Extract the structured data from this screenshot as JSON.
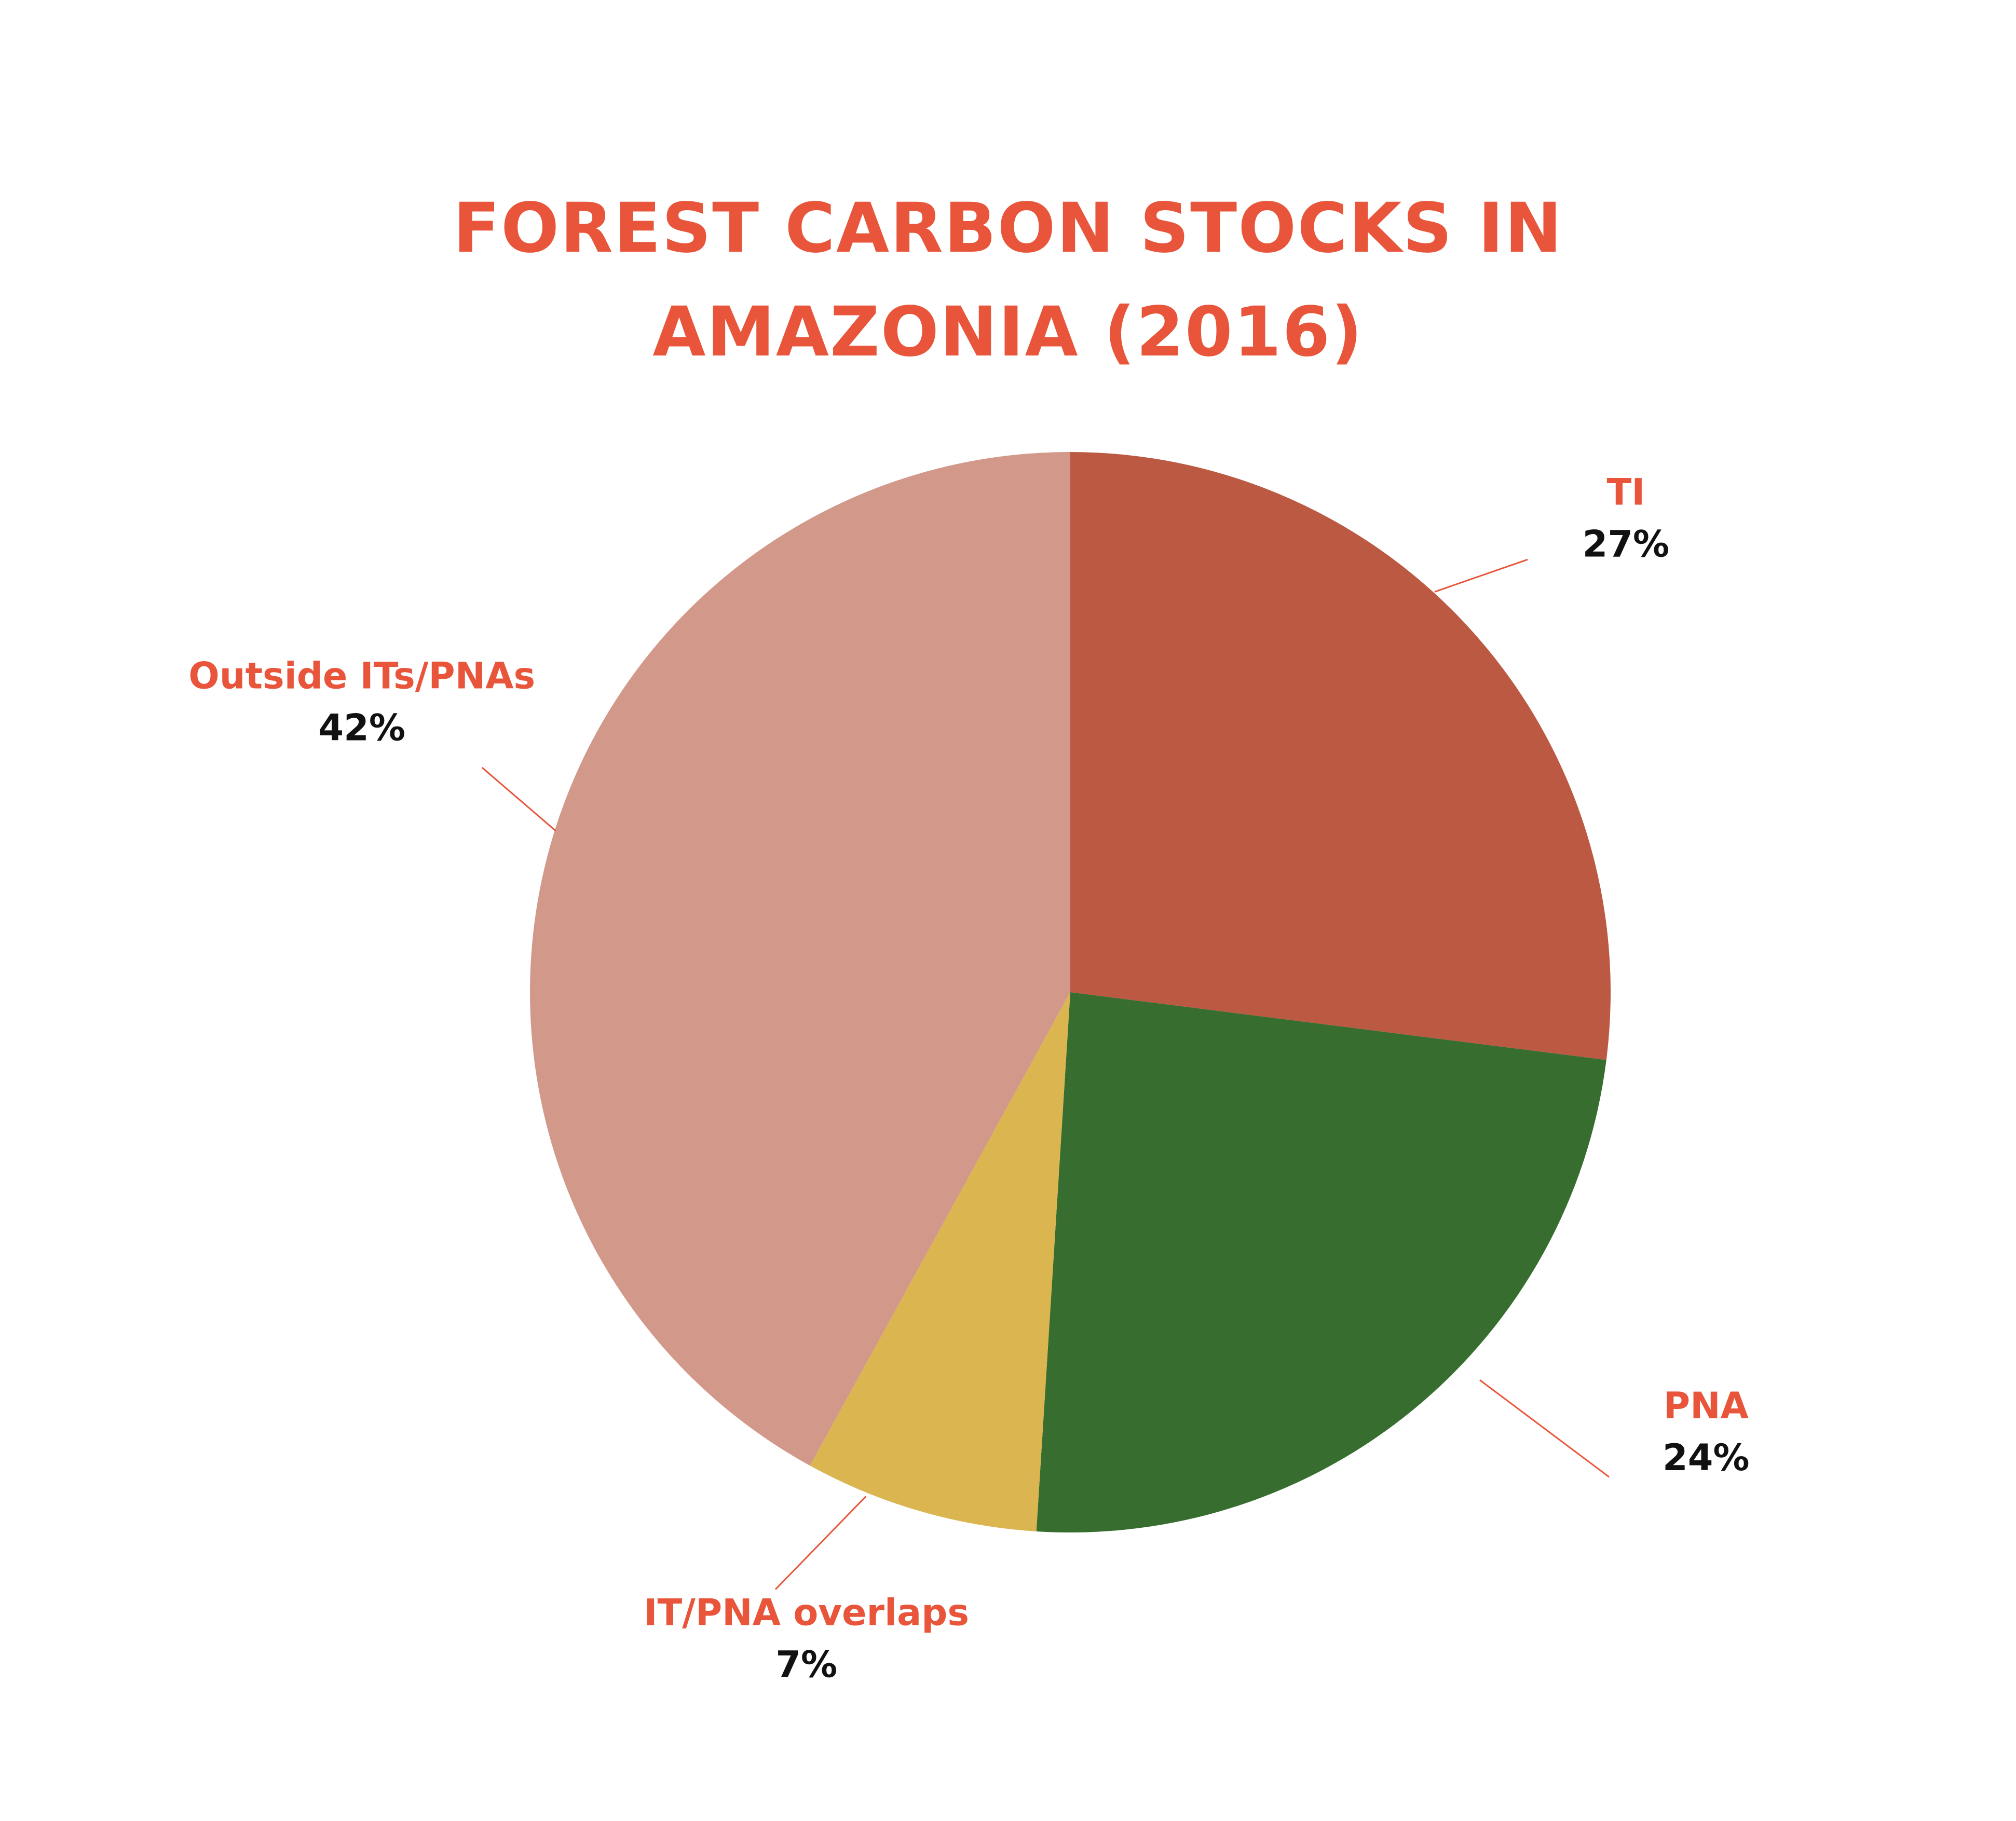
{
  "chart_data": {
    "type": "pie",
    "title": "FOREST CARBON STOCKS IN AMAZONIA (2016)",
    "categories": [
      "TI",
      "PNA",
      "IT/PNA overlaps",
      "Outside ITs/PNAs"
    ],
    "values": [
      27,
      24,
      7,
      42
    ],
    "value_labels": [
      "27%",
      "24%",
      "7%",
      "42%"
    ],
    "colors": [
      "#bb5943",
      "#376d2f",
      "#dbb54f",
      "#d2998a"
    ]
  }
}
